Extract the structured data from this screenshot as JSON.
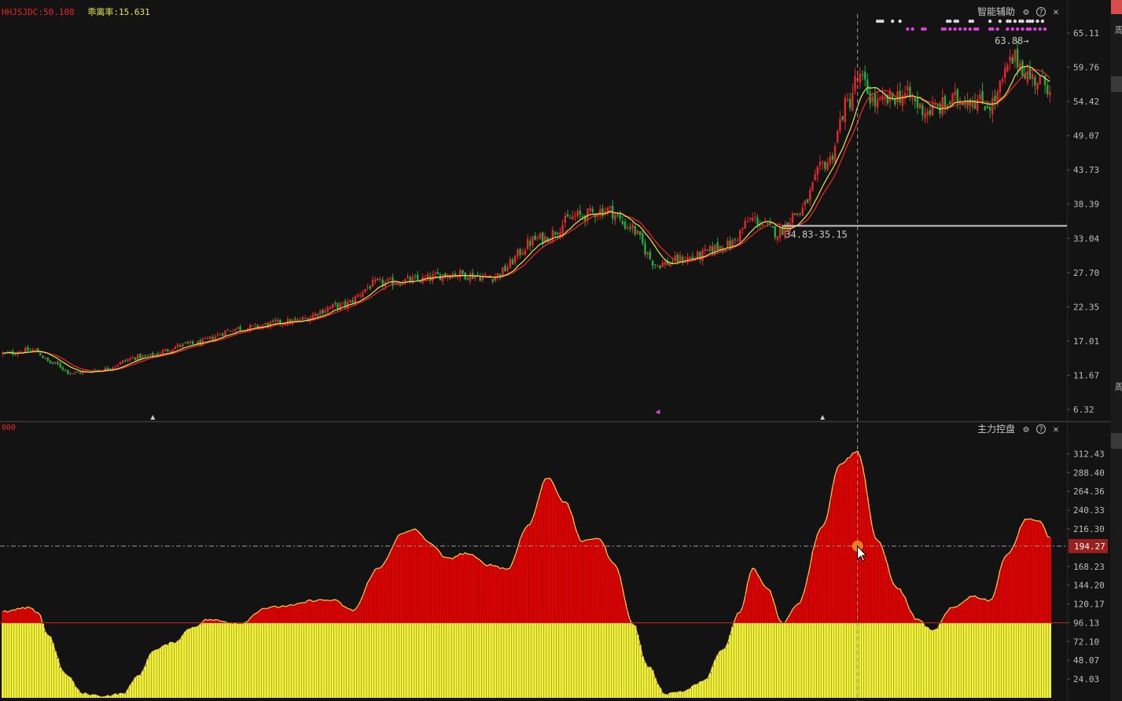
{
  "header": {
    "indicator_label": "HHJSJDC:50.108",
    "deviation_label": "乖离率:15.631"
  },
  "top_panel": {
    "title": "智能辅助",
    "icons": [
      "gear-icon",
      "help-icon",
      "close-icon"
    ],
    "high_marker": "63.88",
    "support_label": "34.83-35.15"
  },
  "bottom_panel": {
    "title": "主力控盘",
    "left_label": "000",
    "icons": [
      "gear-icon",
      "help-icon",
      "close-icon"
    ],
    "crosshair_value": "194.27"
  },
  "right_strip_chars": [
    "周",
    "周"
  ],
  "colors": {
    "background": "#131313",
    "up": "#e8262a",
    "down": "#1fae3c",
    "ma_yellow": "#e8e84c",
    "ma_red": "#e8262a",
    "red_fill": "#e00000",
    "yellow_fill": "#f2f23a",
    "support_line": "#c8c8c8",
    "dot_white": "#d8d8d8",
    "dot_magenta": "#e040e0",
    "crosshair_dot": "#f0902a",
    "value_box": "#9a2020"
  },
  "chart_data": [
    {
      "type": "candlestick",
      "yticks": [
        "65.11",
        "59.76",
        "54.42",
        "49.07",
        "43.73",
        "38.39",
        "33.04",
        "27.70",
        "22.35",
        "17.01",
        "11.67",
        "6.32"
      ],
      "ylim": [
        6.32,
        65.11
      ],
      "bar_count": 420,
      "close_path": [
        [
          0,
          15.0
        ],
        [
          12,
          15.6
        ],
        [
          20,
          13.5
        ],
        [
          28,
          12.0
        ],
        [
          38,
          12.5
        ],
        [
          55,
          14.5
        ],
        [
          75,
          16.5
        ],
        [
          95,
          19.0
        ],
        [
          115,
          20.0
        ],
        [
          135,
          22.5
        ],
        [
          150,
          26.0
        ],
        [
          165,
          26.5
        ],
        [
          180,
          27.5
        ],
        [
          195,
          27.0
        ],
        [
          215,
          33.0
        ],
        [
          230,
          36.5
        ],
        [
          242,
          37.5
        ],
        [
          250,
          35.0
        ],
        [
          262,
          29.0
        ],
        [
          275,
          30.0
        ],
        [
          290,
          32.0
        ],
        [
          300,
          36.0
        ],
        [
          310,
          34.0
        ],
        [
          318,
          37.0
        ],
        [
          330,
          45.0
        ],
        [
          338,
          54.0
        ],
        [
          342,
          58.0
        ],
        [
          350,
          54.0
        ],
        [
          360,
          55.5
        ],
        [
          370,
          53.0
        ],
        [
          385,
          55.0
        ],
        [
          395,
          54.0
        ],
        [
          405,
          61.0
        ],
        [
          412,
          58.0
        ],
        [
          419,
          57.0
        ]
      ],
      "markers": {
        "high": 63.88,
        "support_low": 34.83,
        "support_high": 35.15
      }
    },
    {
      "type": "area",
      "series": [
        {
          "name": "主力控盘"
        }
      ],
      "yticks": [
        "312.43",
        "288.40",
        "264.36",
        "240.33",
        "216.30",
        "194.27",
        "168.23",
        "144.20",
        "120.17",
        "96.13",
        "72.10",
        "48.07",
        "24.03"
      ],
      "ylim": [
        0,
        336
      ],
      "baseline": 96.13,
      "bar_count": 420,
      "value_path": [
        [
          0,
          110
        ],
        [
          10,
          115
        ],
        [
          14,
          110
        ],
        [
          18,
          80
        ],
        [
          25,
          30
        ],
        [
          32,
          5
        ],
        [
          40,
          2
        ],
        [
          48,
          5
        ],
        [
          55,
          30
        ],
        [
          60,
          60
        ],
        [
          68,
          70
        ],
        [
          76,
          90
        ],
        [
          82,
          100
        ],
        [
          95,
          95
        ],
        [
          105,
          115
        ],
        [
          115,
          118
        ],
        [
          125,
          125
        ],
        [
          132,
          125
        ],
        [
          140,
          112
        ],
        [
          150,
          165
        ],
        [
          160,
          210
        ],
        [
          165,
          216
        ],
        [
          170,
          200
        ],
        [
          178,
          178
        ],
        [
          185,
          185
        ],
        [
          195,
          170
        ],
        [
          202,
          165
        ],
        [
          210,
          220
        ],
        [
          218,
          282
        ],
        [
          225,
          250
        ],
        [
          232,
          200
        ],
        [
          238,
          205
        ],
        [
          245,
          170
        ],
        [
          252,
          95
        ],
        [
          258,
          40
        ],
        [
          265,
          5
        ],
        [
          272,
          8
        ],
        [
          280,
          20
        ],
        [
          288,
          60
        ],
        [
          295,
          110
        ],
        [
          300,
          165
        ],
        [
          306,
          140
        ],
        [
          312,
          95
        ],
        [
          318,
          120
        ],
        [
          328,
          220
        ],
        [
          335,
          300
        ],
        [
          342,
          315
        ],
        [
          350,
          200
        ],
        [
          358,
          140
        ],
        [
          366,
          100
        ],
        [
          372,
          85
        ],
        [
          380,
          115
        ],
        [
          388,
          130
        ],
        [
          395,
          125
        ],
        [
          402,
          185
        ],
        [
          410,
          230
        ],
        [
          415,
          225
        ],
        [
          419,
          205
        ]
      ]
    }
  ]
}
